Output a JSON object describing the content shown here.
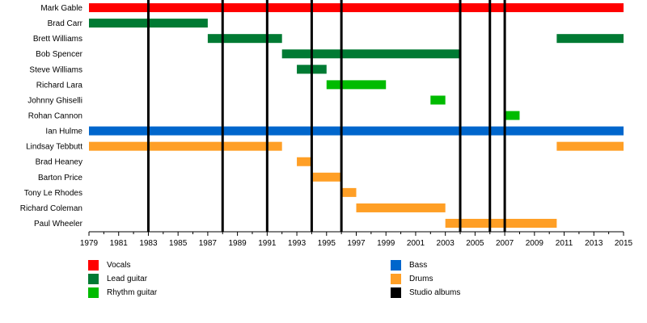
{
  "chart_data": {
    "type": "timeline",
    "x_range": [
      1979,
      2015
    ],
    "x_ticks": [
      1979,
      1981,
      1983,
      1985,
      1987,
      1989,
      1991,
      1993,
      1995,
      1997,
      1999,
      2001,
      2003,
      2005,
      2007,
      2009,
      2011,
      2013,
      2015
    ],
    "roles": [
      {
        "key": "vocals",
        "name": "Vocals",
        "color": "#ff0000"
      },
      {
        "key": "lead",
        "name": "Lead guitar",
        "color": "#007a33"
      },
      {
        "key": "rhythm",
        "name": "Rhythm guitar",
        "color": "#00bb00"
      },
      {
        "key": "bass",
        "name": "Bass",
        "color": "#0066cc"
      },
      {
        "key": "drums",
        "name": "Drums",
        "color": "#ff9f26"
      },
      {
        "key": "albums",
        "name": "Studio albums",
        "color": "#000000"
      }
    ],
    "members": [
      {
        "name": "Mark Gable",
        "spans": [
          {
            "role": "vocals",
            "start": 1979,
            "end": 2015
          }
        ]
      },
      {
        "name": "Brad Carr",
        "spans": [
          {
            "role": "lead",
            "start": 1979,
            "end": 1987
          }
        ]
      },
      {
        "name": "Brett Williams",
        "spans": [
          {
            "role": "lead",
            "start": 1987,
            "end": 1992
          },
          {
            "role": "lead",
            "start": 2010.5,
            "end": 2015
          }
        ]
      },
      {
        "name": "Bob Spencer",
        "spans": [
          {
            "role": "lead",
            "start": 1992,
            "end": 2004
          }
        ]
      },
      {
        "name": "Steve Williams",
        "spans": [
          {
            "role": "lead",
            "start": 1993,
            "end": 1995
          }
        ]
      },
      {
        "name": "Richard Lara",
        "spans": [
          {
            "role": "rhythm",
            "start": 1995,
            "end": 1999
          }
        ]
      },
      {
        "name": "Johnny Ghiselli",
        "spans": [
          {
            "role": "rhythm",
            "start": 2002,
            "end": 2003
          }
        ]
      },
      {
        "name": "Rohan Cannon",
        "spans": [
          {
            "role": "rhythm",
            "start": 2007,
            "end": 2008
          }
        ]
      },
      {
        "name": "Ian Hulme",
        "spans": [
          {
            "role": "bass",
            "start": 1979,
            "end": 2015
          }
        ]
      },
      {
        "name": "Lindsay Tebbutt",
        "spans": [
          {
            "role": "drums",
            "start": 1979,
            "end": 1992
          },
          {
            "role": "drums",
            "start": 2010.5,
            "end": 2015
          }
        ]
      },
      {
        "name": "Brad Heaney",
        "spans": [
          {
            "role": "drums",
            "start": 1993,
            "end": 1994
          }
        ]
      },
      {
        "name": "Barton Price",
        "spans": [
          {
            "role": "drums",
            "start": 1994,
            "end": 1996
          }
        ]
      },
      {
        "name": "Tony Le Rhodes",
        "spans": [
          {
            "role": "drums",
            "start": 1996,
            "end": 1997
          }
        ]
      },
      {
        "name": "Richard Coleman",
        "spans": [
          {
            "role": "drums",
            "start": 1997,
            "end": 2003
          }
        ]
      },
      {
        "name": "Paul Wheeler",
        "spans": [
          {
            "role": "drums",
            "start": 2003,
            "end": 2010.5
          }
        ]
      }
    ],
    "studio_albums": [
      1983,
      1988,
      1991,
      1994,
      1996,
      2004,
      2006,
      2007
    ]
  },
  "legend": {
    "left": [
      {
        "label": "Vocals",
        "color": "#ff0000"
      },
      {
        "label": "Lead guitar",
        "color": "#007a33"
      },
      {
        "label": "Rhythm guitar",
        "color": "#00bb00"
      }
    ],
    "right": [
      {
        "label": "Bass",
        "color": "#0066cc"
      },
      {
        "label": "Drums",
        "color": "#ff9f26"
      },
      {
        "label": "Studio albums",
        "color": "#000000"
      }
    ]
  }
}
